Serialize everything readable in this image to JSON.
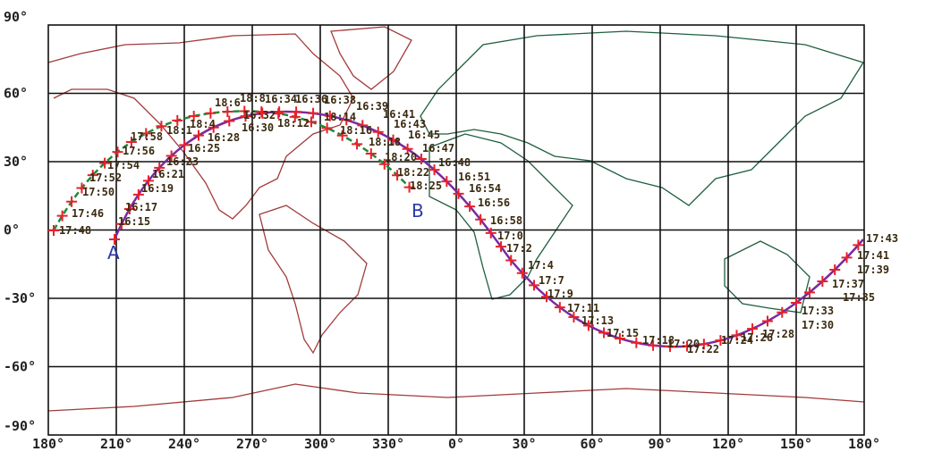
{
  "axis": {
    "longitude_labels": [
      "180°",
      "210°",
      "240°",
      "270°",
      "300°",
      "330°",
      "0°",
      "30°",
      "60°",
      "90°",
      "120°",
      "150°",
      "180°"
    ],
    "latitude_labels": [
      "90°",
      "60°",
      "30°",
      "0°",
      "-30°",
      "-60°",
      "-90°"
    ]
  },
  "markers": [
    "A",
    "B"
  ],
  "track_labels": [
    "17:48",
    "17:46",
    "17:50",
    "17:52",
    "17:54",
    "17:56",
    "17:58",
    "18:1",
    "18:4",
    "18:6",
    "18:8",
    "18:12",
    "18:14",
    "18:16",
    "18:18",
    "18:20",
    "18:22",
    "18:25",
    "16:15",
    "16:17",
    "16:19",
    "16:21",
    "16:23",
    "16:25",
    "16:28",
    "16:30",
    "16:32",
    "16:34",
    "16:36",
    "16:38",
    "16:39",
    "16:41",
    "16:43",
    "16:45",
    "16:47",
    "16:48",
    "16:51",
    "16:54",
    "16:56",
    "16:58",
    "17:0",
    "17:2",
    "17:4",
    "17:7",
    "17:9",
    "17:11",
    "17:13",
    "17:15",
    "17:18",
    "17:20",
    "17:22",
    "17:24",
    "17:26",
    "17:28",
    "17:30",
    "17:33",
    "17:35",
    "17:37",
    "17:39",
    "17:41",
    "17:43"
  ]
}
